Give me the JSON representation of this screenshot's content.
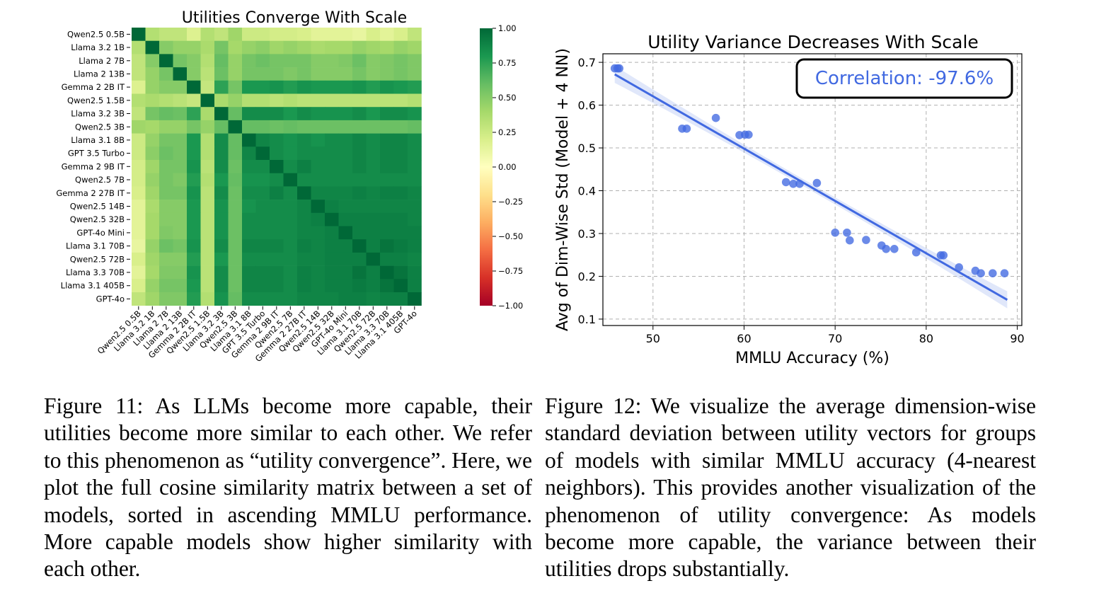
{
  "chart_data": [
    {
      "type": "heatmap",
      "title": "Utilities Converge With Scale",
      "rows": [
        "Qwen2.5 0.5B",
        "Llama 3.2 1B",
        "Llama 2 7B",
        "Llama 2 13B",
        "Gemma 2 2B IT",
        "Qwen2.5 1.5B",
        "Llama 3.2 3B",
        "Qwen2.5 3B",
        "Llama 3.1 8B",
        "GPT 3.5 Turbo",
        "Gemma 2 9B IT",
        "Qwen2.5 7B",
        "Gemma 2 27B IT",
        "Qwen2.5 14B",
        "Qwen2.5 32B",
        "GPT-4o Mini",
        "Llama 3.1 70B",
        "Qwen2.5 72B",
        "Llama 3.3 70B",
        "Llama 3.1 405B",
        "GPT-4o"
      ],
      "columns": [
        "Qwen2.5 0.5B",
        "Llama 3.2 1B",
        "Llama 2 7B",
        "Llama 2 13B",
        "Gemma 2 2B IT",
        "Qwen2.5 1.5B",
        "Llama 3.2 3B",
        "Qwen2.5 3B",
        "Llama 3.1 8B",
        "GPT 3.5 Turbo",
        "Gemma 2 9B IT",
        "Qwen2.5 7B",
        "Gemma 2 27B IT",
        "Qwen2.5 14B",
        "Qwen2.5 32B",
        "GPT-4o Mini",
        "Llama 3.1 70B",
        "Qwen2.5 72B",
        "Llama 3.3 70B",
        "Llama 3.1 405B",
        "GPT-4o"
      ],
      "values": [
        [
          1.0,
          0.35,
          0.3,
          0.3,
          0.18,
          0.35,
          0.3,
          0.42,
          0.25,
          0.25,
          0.22,
          0.22,
          0.2,
          0.15,
          0.15,
          0.15,
          0.12,
          0.2,
          0.15,
          0.2,
          0.3
        ],
        [
          0.35,
          1.0,
          0.5,
          0.45,
          0.45,
          0.38,
          0.55,
          0.4,
          0.45,
          0.48,
          0.42,
          0.45,
          0.42,
          0.38,
          0.4,
          0.4,
          0.45,
          0.42,
          0.4,
          0.45,
          0.42
        ],
        [
          0.3,
          0.5,
          1.0,
          0.55,
          0.5,
          0.35,
          0.6,
          0.45,
          0.55,
          0.58,
          0.55,
          0.55,
          0.55,
          0.5,
          0.5,
          0.52,
          0.58,
          0.5,
          0.52,
          0.55,
          0.52
        ],
        [
          0.3,
          0.45,
          0.55,
          1.0,
          0.5,
          0.32,
          0.58,
          0.45,
          0.55,
          0.55,
          0.55,
          0.52,
          0.55,
          0.5,
          0.5,
          0.5,
          0.55,
          0.5,
          0.52,
          0.55,
          0.52
        ],
        [
          0.18,
          0.45,
          0.5,
          0.5,
          1.0,
          0.28,
          0.75,
          0.55,
          0.8,
          0.8,
          0.82,
          0.78,
          0.82,
          0.8,
          0.8,
          0.8,
          0.82,
          0.78,
          0.82,
          0.8,
          0.78
        ],
        [
          0.35,
          0.38,
          0.35,
          0.32,
          0.28,
          1.0,
          0.38,
          0.45,
          0.35,
          0.35,
          0.32,
          0.35,
          0.32,
          0.32,
          0.32,
          0.32,
          0.32,
          0.32,
          0.32,
          0.32,
          0.35
        ],
        [
          0.3,
          0.55,
          0.6,
          0.58,
          0.75,
          0.38,
          1.0,
          0.6,
          0.85,
          0.85,
          0.85,
          0.8,
          0.85,
          0.82,
          0.82,
          0.82,
          0.85,
          0.8,
          0.85,
          0.85,
          0.82
        ],
        [
          0.42,
          0.4,
          0.45,
          0.45,
          0.55,
          0.45,
          0.6,
          1.0,
          0.6,
          0.6,
          0.58,
          0.6,
          0.58,
          0.58,
          0.58,
          0.58,
          0.58,
          0.58,
          0.58,
          0.58,
          0.6
        ],
        [
          0.25,
          0.45,
          0.55,
          0.55,
          0.8,
          0.35,
          0.85,
          0.6,
          1.0,
          0.88,
          0.85,
          0.82,
          0.85,
          0.82,
          0.85,
          0.85,
          0.88,
          0.85,
          0.88,
          0.88,
          0.85
        ],
        [
          0.25,
          0.48,
          0.58,
          0.55,
          0.8,
          0.35,
          0.85,
          0.6,
          0.88,
          1.0,
          0.85,
          0.82,
          0.85,
          0.85,
          0.85,
          0.85,
          0.88,
          0.85,
          0.88,
          0.88,
          0.85
        ],
        [
          0.22,
          0.42,
          0.55,
          0.55,
          0.82,
          0.32,
          0.85,
          0.58,
          0.85,
          0.85,
          1.0,
          0.85,
          0.9,
          0.85,
          0.85,
          0.85,
          0.88,
          0.85,
          0.88,
          0.88,
          0.85
        ],
        [
          0.22,
          0.45,
          0.55,
          0.52,
          0.78,
          0.35,
          0.8,
          0.6,
          0.82,
          0.82,
          0.85,
          1.0,
          0.85,
          0.85,
          0.85,
          0.85,
          0.85,
          0.85,
          0.85,
          0.85,
          0.85
        ],
        [
          0.2,
          0.42,
          0.55,
          0.55,
          0.82,
          0.32,
          0.85,
          0.58,
          0.85,
          0.85,
          0.9,
          0.85,
          1.0,
          0.88,
          0.88,
          0.88,
          0.9,
          0.88,
          0.9,
          0.9,
          0.88
        ],
        [
          0.15,
          0.38,
          0.5,
          0.5,
          0.8,
          0.32,
          0.82,
          0.58,
          0.82,
          0.85,
          0.85,
          0.85,
          0.88,
          1.0,
          0.9,
          0.88,
          0.88,
          0.88,
          0.88,
          0.88,
          0.88
        ],
        [
          0.15,
          0.4,
          0.5,
          0.5,
          0.8,
          0.32,
          0.82,
          0.58,
          0.85,
          0.85,
          0.85,
          0.85,
          0.88,
          0.9,
          1.0,
          0.9,
          0.9,
          0.9,
          0.9,
          0.9,
          0.88
        ],
        [
          0.15,
          0.4,
          0.52,
          0.5,
          0.8,
          0.32,
          0.82,
          0.58,
          0.85,
          0.85,
          0.85,
          0.85,
          0.88,
          0.88,
          0.9,
          1.0,
          0.9,
          0.9,
          0.9,
          0.9,
          0.9
        ],
        [
          0.12,
          0.45,
          0.58,
          0.55,
          0.82,
          0.32,
          0.85,
          0.58,
          0.88,
          0.88,
          0.88,
          0.85,
          0.9,
          0.88,
          0.9,
          0.9,
          1.0,
          0.9,
          0.95,
          0.92,
          0.9
        ],
        [
          0.2,
          0.42,
          0.5,
          0.5,
          0.78,
          0.32,
          0.8,
          0.58,
          0.85,
          0.85,
          0.85,
          0.85,
          0.88,
          0.88,
          0.9,
          0.9,
          0.9,
          1.0,
          0.9,
          0.9,
          0.88
        ],
        [
          0.15,
          0.4,
          0.52,
          0.52,
          0.82,
          0.32,
          0.85,
          0.58,
          0.88,
          0.88,
          0.88,
          0.85,
          0.9,
          0.88,
          0.9,
          0.9,
          0.95,
          0.9,
          1.0,
          0.95,
          0.9
        ],
        [
          0.2,
          0.45,
          0.55,
          0.55,
          0.8,
          0.32,
          0.85,
          0.58,
          0.88,
          0.88,
          0.88,
          0.85,
          0.9,
          0.88,
          0.9,
          0.9,
          0.92,
          0.9,
          0.95,
          1.0,
          0.9
        ],
        [
          0.3,
          0.42,
          0.52,
          0.52,
          0.78,
          0.35,
          0.82,
          0.6,
          0.85,
          0.85,
          0.85,
          0.85,
          0.88,
          0.88,
          0.88,
          0.9,
          0.9,
          0.88,
          0.9,
          0.9,
          1.0
        ]
      ],
      "colorbar": {
        "range": [
          -1.0,
          1.0
        ],
        "ticks": [
          "1.00",
          "0.75",
          "0.50",
          "0.25",
          "0.00",
          "−0.25",
          "−0.50",
          "−0.75",
          "−1.00"
        ],
        "tick_values": [
          1.0,
          0.75,
          0.5,
          0.25,
          0.0,
          -0.25,
          -0.5,
          -0.75,
          -1.0
        ],
        "colormap": "RdYlGn",
        "stops": [
          "#a50026",
          "#d73027",
          "#f46d43",
          "#fdae61",
          "#fee08b",
          "#ffffbf",
          "#d9ef8b",
          "#a6d96a",
          "#66bd63",
          "#1a9850",
          "#006837"
        ]
      }
    },
    {
      "type": "scatter",
      "title": "Utility Variance Decreases With Scale",
      "xlabel": "MMLU Accuracy (%)",
      "ylabel": "Avg of Dim-Wise Std (Model + 4 NN)",
      "xlim": [
        44.5,
        90.5
      ],
      "ylim": [
        0.085,
        0.72
      ],
      "xticks": [
        50,
        60,
        70,
        80,
        90
      ],
      "yticks": [
        0.1,
        0.2,
        0.3,
        0.4,
        0.5,
        0.6,
        0.7
      ],
      "grid": true,
      "point_color": "#4169e1",
      "points": [
        [
          45.8,
          0.686
        ],
        [
          46.1,
          0.686
        ],
        [
          46.3,
          0.686
        ],
        [
          53.2,
          0.545
        ],
        [
          53.7,
          0.545
        ],
        [
          56.9,
          0.57
        ],
        [
          59.5,
          0.53
        ],
        [
          60.1,
          0.531
        ],
        [
          60.5,
          0.531
        ],
        [
          64.6,
          0.42
        ],
        [
          65.4,
          0.416
        ],
        [
          66.1,
          0.416
        ],
        [
          68.0,
          0.418
        ],
        [
          70.0,
          0.302
        ],
        [
          71.3,
          0.302
        ],
        [
          71.6,
          0.284
        ],
        [
          73.4,
          0.285
        ],
        [
          75.1,
          0.272
        ],
        [
          75.6,
          0.264
        ],
        [
          76.5,
          0.264
        ],
        [
          78.9,
          0.256
        ],
        [
          81.6,
          0.249
        ],
        [
          81.9,
          0.249
        ],
        [
          83.6,
          0.221
        ],
        [
          85.4,
          0.213
        ],
        [
          86.0,
          0.207
        ],
        [
          87.3,
          0.207
        ],
        [
          88.6,
          0.207
        ]
      ],
      "regression": {
        "x": [
          45.8,
          88.9
        ],
        "y": [
          0.672,
          0.145
        ]
      },
      "annotation": "Correlation: -97.6%",
      "annotation_position": "top-right"
    }
  ],
  "captions": {
    "left": "Figure 11: As LLMs become more capable, their utilities become more similar to each other. We refer to this phenomenon as “utility convergence”. Here, we plot the full cosine similarity matrix between a set of models, sorted in ascending MMLU performance. More capable models show higher similarity with each other.",
    "right": "Figure 12: We visualize the average dimension-wise standard deviation between utility vectors for groups of models with similar MMLU accuracy (4-nearest neighbors). This provides another visualization of the phenomenon of utility convergence: As models become more capable, the variance between their utilities drops substantially."
  }
}
